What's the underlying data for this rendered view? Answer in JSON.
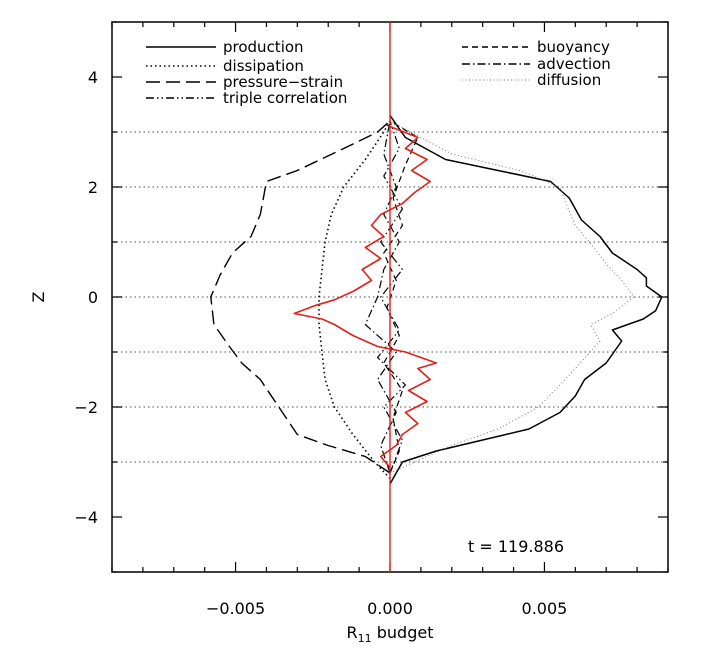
{
  "chart_data": {
    "type": "line",
    "xlabel": "R",
    "xlabel_sub": "11",
    "xlabel_suffix": " budget",
    "ylabel": "Z",
    "xlim": [
      -0.009,
      0.009
    ],
    "ylim": [
      -5,
      5
    ],
    "x_tick_labels": [
      "−0.005",
      "0.000",
      "0.005"
    ],
    "x_tick_values": [
      -0.005,
      0.0,
      0.005
    ],
    "y_tick_labels": [
      "−4",
      "−2",
      "0",
      "2",
      "4"
    ],
    "y_tick_values": [
      -4,
      -2,
      0,
      2,
      4
    ],
    "annotation": "t = 119.886",
    "reference_lines_z": [
      -3,
      -1,
      1,
      3
    ],
    "reference_lines_style": "dotted gray",
    "zero_lines_z": [
      -2,
      0,
      2
    ],
    "legend_left": [
      "production",
      "dissipation",
      "pressure−strain",
      "triple correlation"
    ],
    "legend_right": [
      "buoyancy",
      "advection",
      "diffusion"
    ],
    "red_series_color": "#e0221c",
    "series": [
      {
        "name": "production",
        "style": "solid",
        "points": [
          [
            0.0,
            -3.4
          ],
          [
            0.0004,
            -3.0
          ],
          [
            0.0015,
            -2.8
          ],
          [
            0.003,
            -2.6
          ],
          [
            0.0045,
            -2.4
          ],
          [
            0.0055,
            -2.1
          ],
          [
            0.006,
            -1.8
          ],
          [
            0.0063,
            -1.5
          ],
          [
            0.007,
            -1.2
          ],
          [
            0.0075,
            -0.8
          ],
          [
            0.0072,
            -0.6
          ],
          [
            0.0082,
            -0.4
          ],
          [
            0.0086,
            -0.25
          ],
          [
            0.0088,
            0.0
          ],
          [
            0.0083,
            0.2
          ],
          [
            0.0083,
            0.35
          ],
          [
            0.008,
            0.5
          ],
          [
            0.0072,
            0.8
          ],
          [
            0.0068,
            1.1
          ],
          [
            0.0062,
            1.4
          ],
          [
            0.0058,
            1.8
          ],
          [
            0.0052,
            2.1
          ],
          [
            0.0035,
            2.3
          ],
          [
            0.0018,
            2.5
          ],
          [
            0.0005,
            2.9
          ],
          [
            0.0,
            3.3
          ]
        ]
      },
      {
        "name": "dissipation",
        "style": "dotted",
        "points": [
          [
            0.0,
            -3.3
          ],
          [
            -0.0005,
            -3.0
          ],
          [
            -0.0012,
            -2.5
          ],
          [
            -0.0018,
            -2.0
          ],
          [
            -0.0021,
            -1.5
          ],
          [
            -0.0022,
            -1.0
          ],
          [
            -0.0023,
            -0.5
          ],
          [
            -0.0023,
            0.0
          ],
          [
            -0.0022,
            0.5
          ],
          [
            -0.0021,
            1.0
          ],
          [
            -0.0019,
            1.5
          ],
          [
            -0.0015,
            2.0
          ],
          [
            -0.0008,
            2.5
          ],
          [
            -0.0002,
            3.0
          ],
          [
            0.0,
            3.2
          ]
        ]
      },
      {
        "name": "pressure−strain",
        "style": "longdash",
        "points": [
          [
            0.0,
            -3.2
          ],
          [
            -0.0008,
            -2.9
          ],
          [
            -0.002,
            -2.7
          ],
          [
            -0.003,
            -2.5
          ],
          [
            -0.0036,
            -2.0
          ],
          [
            -0.0042,
            -1.5
          ],
          [
            -0.0048,
            -1.2
          ],
          [
            -0.0052,
            -0.9
          ],
          [
            -0.0057,
            -0.5
          ],
          [
            -0.0058,
            0.0
          ],
          [
            -0.0055,
            0.4
          ],
          [
            -0.0051,
            0.8
          ],
          [
            -0.0045,
            1.1
          ],
          [
            -0.0042,
            1.5
          ],
          [
            -0.0041,
            1.8
          ],
          [
            -0.004,
            2.1
          ],
          [
            -0.003,
            2.3
          ],
          [
            -0.0015,
            2.7
          ],
          [
            -0.0004,
            3.0
          ],
          [
            0.0,
            3.2
          ]
        ]
      },
      {
        "name": "triple correlation",
        "style": "dashdotdot",
        "points": [
          [
            0.0,
            -3.2
          ],
          [
            0.0004,
            -2.6
          ],
          [
            -0.0002,
            -2.0
          ],
          [
            0.0005,
            -1.6
          ],
          [
            -0.0004,
            -1.1
          ],
          [
            0.0003,
            -0.6
          ],
          [
            -0.0003,
            0.0
          ],
          [
            0.0004,
            0.5
          ],
          [
            -0.0003,
            1.0
          ],
          [
            0.0004,
            1.6
          ],
          [
            -0.0002,
            2.2
          ],
          [
            0.0003,
            2.7
          ],
          [
            0.0,
            3.2
          ]
        ]
      },
      {
        "name": "buoyancy",
        "style": "dashed",
        "points": [
          [
            0.0,
            -3.2
          ],
          [
            0.0003,
            -2.8
          ],
          [
            0.0001,
            -2.2
          ],
          [
            0.0004,
            -1.7
          ],
          [
            -0.0002,
            -1.2
          ],
          [
            0.0003,
            -0.7
          ],
          [
            -0.0001,
            -0.2
          ],
          [
            0.0002,
            0.3
          ],
          [
            -0.0002,
            0.8
          ],
          [
            0.0004,
            1.3
          ],
          [
            0.0001,
            1.8
          ],
          [
            0.0005,
            2.4
          ],
          [
            0.0009,
            2.9
          ],
          [
            0.0,
            3.2
          ]
        ]
      },
      {
        "name": "advection",
        "style": "dashdot",
        "points": [
          [
            0.0,
            -3.2
          ],
          [
            -0.0003,
            -2.7
          ],
          [
            0.0002,
            -2.1
          ],
          [
            -0.0004,
            -1.5
          ],
          [
            0.0002,
            -1.0
          ],
          [
            -0.0008,
            -0.5
          ],
          [
            -0.0004,
            0.0
          ],
          [
            -0.0002,
            0.5
          ],
          [
            0.0003,
            1.0
          ],
          [
            -0.0002,
            1.5
          ],
          [
            0.0002,
            2.0
          ],
          [
            -0.0002,
            2.6
          ],
          [
            0.0,
            3.2
          ]
        ]
      },
      {
        "name": "diffusion",
        "style": "thindotted",
        "points": [
          [
            0.0,
            -3.2
          ],
          [
            0.002,
            -2.7
          ],
          [
            0.0035,
            -2.4
          ],
          [
            0.0048,
            -2.0
          ],
          [
            0.0055,
            -1.6
          ],
          [
            0.006,
            -1.3
          ],
          [
            0.0068,
            -0.8
          ],
          [
            0.0065,
            -0.5
          ],
          [
            0.0072,
            -0.3
          ],
          [
            0.0079,
            0.0
          ],
          [
            0.0075,
            0.3
          ],
          [
            0.007,
            0.6
          ],
          [
            0.0066,
            0.9
          ],
          [
            0.006,
            1.3
          ],
          [
            0.0057,
            1.7
          ],
          [
            0.0055,
            2.0
          ],
          [
            0.0042,
            2.3
          ],
          [
            0.002,
            2.6
          ],
          [
            0.0,
            3.2
          ]
        ]
      },
      {
        "name": "",
        "style": "red",
        "points": [
          [
            0.0,
            -3.1
          ],
          [
            -0.0003,
            -2.9
          ],
          [
            0.0002,
            -2.7
          ],
          [
            0.0004,
            -2.5
          ],
          [
            0.0009,
            -2.3
          ],
          [
            0.0005,
            -2.1
          ],
          [
            0.0012,
            -1.9
          ],
          [
            0.0006,
            -1.7
          ],
          [
            0.0013,
            -1.5
          ],
          [
            0.0009,
            -1.3
          ],
          [
            0.0015,
            -1.2
          ],
          [
            0.0005,
            -1.0
          ],
          [
            -0.0004,
            -0.9
          ],
          [
            -0.0012,
            -0.7
          ],
          [
            -0.0018,
            -0.5
          ],
          [
            -0.0022,
            -0.4
          ],
          [
            -0.0031,
            -0.3
          ],
          [
            -0.0024,
            -0.15
          ],
          [
            -0.0018,
            -0.05
          ],
          [
            -0.0012,
            0.1
          ],
          [
            -0.0006,
            0.3
          ],
          [
            -0.0009,
            0.5
          ],
          [
            -0.0003,
            0.7
          ],
          [
            -0.0008,
            0.9
          ],
          [
            -0.0002,
            1.1
          ],
          [
            -0.0006,
            1.3
          ],
          [
            -0.0003,
            1.5
          ],
          [
            0.0004,
            1.7
          ],
          [
            0.0008,
            1.9
          ],
          [
            0.0013,
            2.1
          ],
          [
            0.0007,
            2.3
          ],
          [
            0.0012,
            2.5
          ],
          [
            0.0005,
            2.7
          ],
          [
            0.0009,
            2.9
          ],
          [
            0.0,
            3.1
          ]
        ]
      }
    ]
  }
}
